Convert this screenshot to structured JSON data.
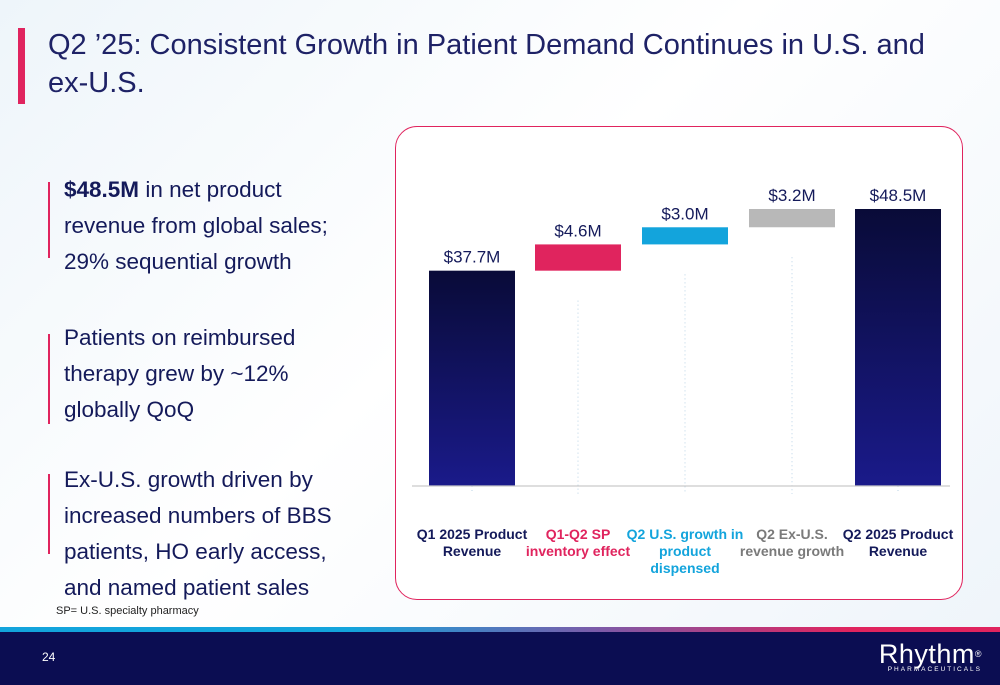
{
  "slide": {
    "title": "Q2 ’25: Consistent Growth in Patient Demand Continues in U.S. and ex-U.S.",
    "page_number": "24",
    "footnote": "SP= U.S. specialty pharmacy"
  },
  "bullets": [
    {
      "bold": "$48.5M",
      "text": " in net product revenue from global sales; 29% sequential growth"
    },
    {
      "bold": "",
      "text": "Patients on reimbursed therapy grew by ~12% globally QoQ"
    },
    {
      "bold": "",
      "text": "Ex-U.S. growth driven by increased numbers of BBS patients, HO early access, and named patient sales"
    }
  ],
  "logo": {
    "word": "Rhythm",
    "mark": "®",
    "sub": "PHARMACEUTICALS"
  },
  "colors": {
    "accent": "#e0245e",
    "navy": "#0b0d52",
    "cyan": "#13a4dc",
    "gray": "#b8b8b8"
  },
  "chart_data": {
    "type": "bar",
    "subtype": "waterfall",
    "categories": [
      "Q1 2025 Product Revenue",
      "Q1-Q2 SP inventory effect",
      "Q2 U.S. growth in product dispensed",
      "Q2 Ex-U.S. revenue growth",
      "Q2 2025 Product Revenue"
    ],
    "values": [
      37.7,
      4.6,
      3.0,
      3.2,
      48.5
    ],
    "bar_kind": [
      "total",
      "delta",
      "delta",
      "delta",
      "total"
    ],
    "data_labels": [
      "$37.7M",
      "$4.6M",
      "$3.0M",
      "$3.2M",
      "$48.5M"
    ],
    "bar_colors": [
      "#0b0d52",
      "#e0245e",
      "#13a4dc",
      "#b8b8b8",
      "#0b0d52"
    ],
    "label_colors": [
      "#141a5a",
      "#e0245e",
      "#13a4dc",
      "#7a7a7a",
      "#141a5a"
    ],
    "unit": "$M",
    "ylim": [
      0,
      48.5
    ],
    "grid": false,
    "legend": "none"
  }
}
